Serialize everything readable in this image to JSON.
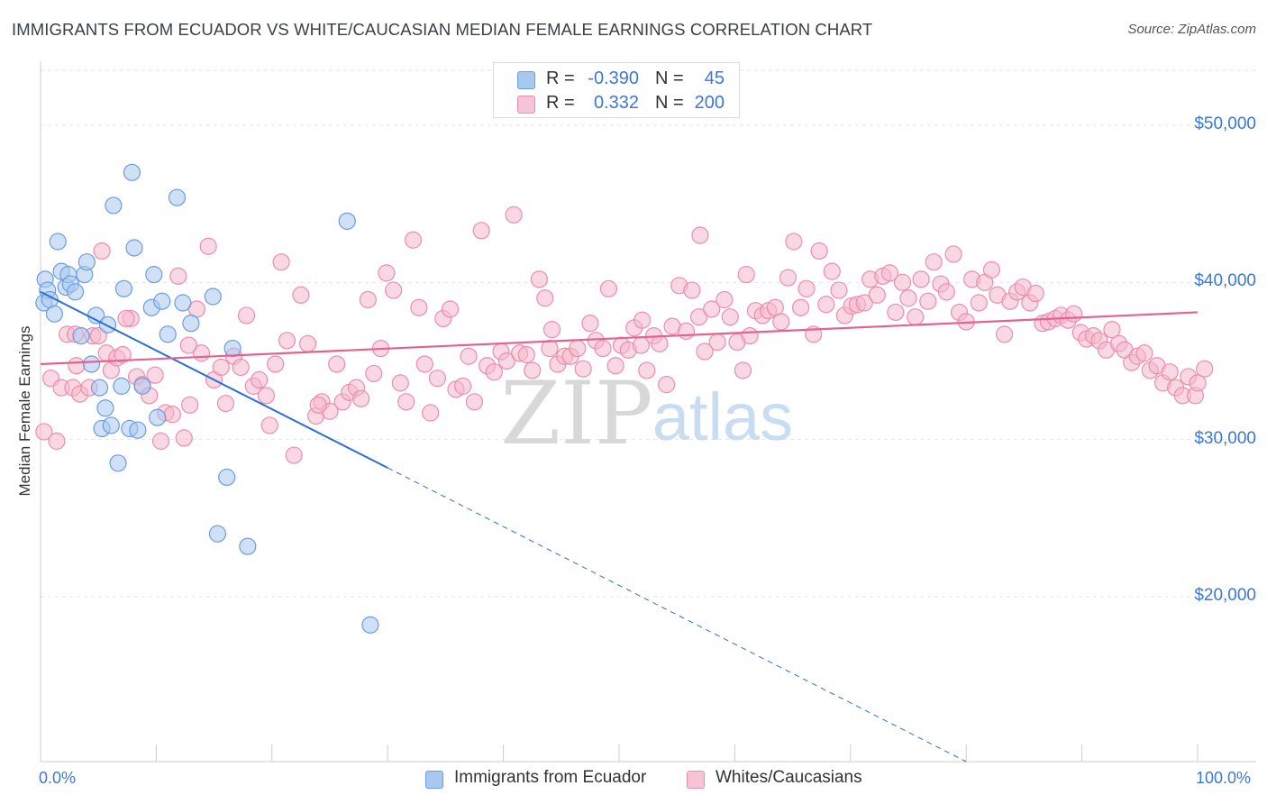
{
  "header": {
    "title": "IMMIGRANTS FROM ECUADOR VS WHITE/CAUCASIAN MEDIAN FEMALE EARNINGS CORRELATION CHART",
    "source": "Source: ZipAtlas.com"
  },
  "watermark": {
    "zip": "ZIP",
    "atlas": "atlas"
  },
  "legend": {
    "rows": [
      {
        "r_label": "R =",
        "r_value": "-0.390",
        "n_label": "N =",
        "n_value": "45"
      },
      {
        "r_label": "R =",
        "r_value": "0.332",
        "n_label": "N =",
        "n_value": "200"
      }
    ]
  },
  "colors": {
    "blue_fill": "#a9c8f0",
    "blue_stroke": "#6a9de0",
    "blue_line": "#2a6fd6",
    "pink_fill": "#f6b8cc",
    "pink_stroke": "#ec8eab",
    "pink_line": "#e3628f",
    "tick_text": "#3b78d8",
    "grid": "#e3e3e3"
  },
  "chart_data": {
    "type": "scatter",
    "title": "IMMIGRANTS FROM ECUADOR VS WHITE/CAUCASIAN MEDIAN FEMALE EARNINGS CORRELATION CHART",
    "xlabel": "",
    "ylabel": "Median Female Earnings",
    "xlim": [
      0,
      100
    ],
    "ylim": [
      9500,
      53500
    ],
    "y_ticks": [
      20000,
      30000,
      40000,
      50000
    ],
    "y_tick_labels": [
      "$20,000",
      "$30,000",
      "$40,000",
      "$50,000"
    ],
    "x_tick_labels": [
      "0.0%",
      "100.0%"
    ],
    "series": [
      {
        "name": "Immigrants from Ecuador",
        "color": "blue",
        "r": -0.39,
        "n": 45,
        "trend": {
          "x0": 0,
          "y0": 39400,
          "x1": 30,
          "y1": 28200,
          "dash_to_x": 80,
          "dash_to_y": 9500
        },
        "points": [
          [
            0.3,
            38700
          ],
          [
            0.4,
            40200
          ],
          [
            0.6,
            39500
          ],
          [
            0.8,
            38900
          ],
          [
            1.2,
            38000
          ],
          [
            1.5,
            42600
          ],
          [
            1.8,
            40700
          ],
          [
            2.2,
            39700
          ],
          [
            2.4,
            40500
          ],
          [
            2.6,
            39900
          ],
          [
            3.0,
            39400
          ],
          [
            3.5,
            36600
          ],
          [
            3.8,
            40500
          ],
          [
            4.0,
            41300
          ],
          [
            4.4,
            34800
          ],
          [
            4.8,
            37900
          ],
          [
            5.1,
            33300
          ],
          [
            5.3,
            30700
          ],
          [
            5.6,
            32000
          ],
          [
            5.8,
            37300
          ],
          [
            6.1,
            30900
          ],
          [
            6.7,
            28500
          ],
          [
            7.0,
            33400
          ],
          [
            7.2,
            39600
          ],
          [
            7.7,
            30700
          ],
          [
            7.9,
            47000
          ],
          [
            8.1,
            42200
          ],
          [
            8.4,
            30600
          ],
          [
            8.8,
            33400
          ],
          [
            9.6,
            38400
          ],
          [
            9.8,
            40500
          ],
          [
            10.1,
            31400
          ],
          [
            10.5,
            38800
          ],
          [
            11.0,
            36700
          ],
          [
            11.8,
            45400
          ],
          [
            12.3,
            38700
          ],
          [
            13.0,
            37400
          ],
          [
            14.9,
            39100
          ],
          [
            15.3,
            24000
          ],
          [
            16.1,
            27600
          ],
          [
            16.6,
            35800
          ],
          [
            17.9,
            23200
          ],
          [
            26.5,
            43900
          ],
          [
            28.5,
            18200
          ],
          [
            6.3,
            44900
          ]
        ]
      },
      {
        "name": "Whites/Caucasians",
        "color": "pink",
        "r": 0.332,
        "n": 200,
        "trend": {
          "x0": 0,
          "y0": 34800,
          "x1": 100,
          "y1": 38100
        },
        "points": [
          [
            0.3,
            30500
          ],
          [
            0.9,
            33900
          ],
          [
            1.4,
            29900
          ],
          [
            1.8,
            33300
          ],
          [
            2.3,
            36700
          ],
          [
            2.8,
            33300
          ],
          [
            3.1,
            34700
          ],
          [
            3.4,
            32900
          ],
          [
            4.2,
            33300
          ],
          [
            4.5,
            36600
          ],
          [
            5.0,
            36600
          ],
          [
            5.3,
            42000
          ],
          [
            5.7,
            35500
          ],
          [
            6.1,
            34400
          ],
          [
            6.6,
            35200
          ],
          [
            7.1,
            35400
          ],
          [
            7.8,
            37700
          ],
          [
            8.3,
            34000
          ],
          [
            8.8,
            33500
          ],
          [
            9.4,
            32800
          ],
          [
            9.9,
            34100
          ],
          [
            10.4,
            29900
          ],
          [
            10.8,
            31700
          ],
          [
            11.4,
            31600
          ],
          [
            11.9,
            40400
          ],
          [
            12.4,
            30100
          ],
          [
            12.9,
            32200
          ],
          [
            13.5,
            38300
          ],
          [
            13.9,
            35500
          ],
          [
            14.5,
            42300
          ],
          [
            15.0,
            33800
          ],
          [
            15.6,
            34600
          ],
          [
            16.0,
            32300
          ],
          [
            16.7,
            35300
          ],
          [
            17.3,
            34600
          ],
          [
            17.8,
            37900
          ],
          [
            18.4,
            33400
          ],
          [
            18.9,
            33800
          ],
          [
            19.5,
            32800
          ],
          [
            19.8,
            30900
          ],
          [
            20.3,
            34800
          ],
          [
            20.8,
            41300
          ],
          [
            21.3,
            36300
          ],
          [
            21.9,
            29000
          ],
          [
            22.5,
            39200
          ],
          [
            23.1,
            36100
          ],
          [
            23.8,
            31500
          ],
          [
            24.3,
            32400
          ],
          [
            25.0,
            31800
          ],
          [
            25.6,
            34800
          ],
          [
            26.1,
            32400
          ],
          [
            26.7,
            33000
          ],
          [
            27.3,
            33300
          ],
          [
            27.7,
            32600
          ],
          [
            28.3,
            38900
          ],
          [
            28.8,
            34200
          ],
          [
            29.4,
            35800
          ],
          [
            29.9,
            40600
          ],
          [
            30.5,
            39500
          ],
          [
            31.1,
            33600
          ],
          [
            31.6,
            32400
          ],
          [
            32.2,
            42700
          ],
          [
            32.7,
            38400
          ],
          [
            33.2,
            34800
          ],
          [
            33.7,
            31700
          ],
          [
            34.3,
            33900
          ],
          [
            34.8,
            37700
          ],
          [
            35.4,
            38300
          ],
          [
            35.9,
            33200
          ],
          [
            36.5,
            33400
          ],
          [
            37.0,
            35300
          ],
          [
            37.5,
            32400
          ],
          [
            38.1,
            43300
          ],
          [
            38.6,
            34700
          ],
          [
            39.2,
            34300
          ],
          [
            39.8,
            35600
          ],
          [
            40.3,
            35000
          ],
          [
            40.9,
            44300
          ],
          [
            41.4,
            35500
          ],
          [
            42.0,
            35400
          ],
          [
            42.5,
            34400
          ],
          [
            43.1,
            40200
          ],
          [
            43.6,
            39000
          ],
          [
            44.2,
            37000
          ],
          [
            44.7,
            34800
          ],
          [
            45.3,
            35300
          ],
          [
            45.8,
            35300
          ],
          [
            46.4,
            35800
          ],
          [
            46.9,
            34500
          ],
          [
            47.5,
            37400
          ],
          [
            48.0,
            36300
          ],
          [
            48.6,
            35800
          ],
          [
            49.1,
            39600
          ],
          [
            49.7,
            34700
          ],
          [
            50.2,
            36000
          ],
          [
            50.8,
            35700
          ],
          [
            51.3,
            37100
          ],
          [
            51.9,
            36000
          ],
          [
            52.4,
            34400
          ],
          [
            53.0,
            36600
          ],
          [
            53.5,
            36100
          ],
          [
            54.1,
            33500
          ],
          [
            54.6,
            37200
          ],
          [
            55.2,
            39800
          ],
          [
            55.8,
            36900
          ],
          [
            56.3,
            39500
          ],
          [
            56.9,
            37800
          ],
          [
            57.4,
            35600
          ],
          [
            58.0,
            38300
          ],
          [
            58.5,
            36200
          ],
          [
            59.1,
            38900
          ],
          [
            59.6,
            37800
          ],
          [
            60.2,
            36200
          ],
          [
            60.7,
            34400
          ],
          [
            61.3,
            36600
          ],
          [
            61.8,
            38200
          ],
          [
            62.4,
            37900
          ],
          [
            62.9,
            38200
          ],
          [
            63.5,
            38400
          ],
          [
            64.0,
            37500
          ],
          [
            64.6,
            40300
          ],
          [
            65.1,
            42600
          ],
          [
            65.7,
            38400
          ],
          [
            66.2,
            39600
          ],
          [
            66.8,
            36700
          ],
          [
            67.3,
            42000
          ],
          [
            67.9,
            38600
          ],
          [
            68.4,
            40700
          ],
          [
            69.0,
            39500
          ],
          [
            69.5,
            37900
          ],
          [
            70.1,
            38500
          ],
          [
            70.6,
            38600
          ],
          [
            71.2,
            38700
          ],
          [
            71.7,
            40200
          ],
          [
            72.3,
            39200
          ],
          [
            72.8,
            40400
          ],
          [
            73.4,
            40600
          ],
          [
            73.9,
            38100
          ],
          [
            74.5,
            40000
          ],
          [
            75.0,
            39000
          ],
          [
            75.6,
            37800
          ],
          [
            76.1,
            40200
          ],
          [
            76.7,
            38800
          ],
          [
            77.2,
            41300
          ],
          [
            77.8,
            39900
          ],
          [
            78.3,
            39400
          ],
          [
            78.9,
            41800
          ],
          [
            79.4,
            38100
          ],
          [
            80.0,
            37500
          ],
          [
            80.5,
            40200
          ],
          [
            81.1,
            38700
          ],
          [
            81.6,
            40000
          ],
          [
            82.2,
            40800
          ],
          [
            82.7,
            39200
          ],
          [
            83.3,
            36700
          ],
          [
            83.8,
            38800
          ],
          [
            84.4,
            39400
          ],
          [
            84.9,
            39700
          ],
          [
            85.5,
            38700
          ],
          [
            86.0,
            39300
          ],
          [
            86.6,
            37400
          ],
          [
            87.1,
            37500
          ],
          [
            87.7,
            37700
          ],
          [
            88.2,
            37900
          ],
          [
            88.8,
            37600
          ],
          [
            89.3,
            38000
          ],
          [
            89.9,
            36800
          ],
          [
            90.4,
            36400
          ],
          [
            91.0,
            36600
          ],
          [
            91.5,
            36300
          ],
          [
            92.1,
            35700
          ],
          [
            92.6,
            37000
          ],
          [
            93.2,
            36100
          ],
          [
            93.7,
            35700
          ],
          [
            94.3,
            34900
          ],
          [
            94.8,
            35300
          ],
          [
            95.4,
            35500
          ],
          [
            95.9,
            34400
          ],
          [
            96.5,
            34700
          ],
          [
            97.0,
            33600
          ],
          [
            97.6,
            34300
          ],
          [
            98.1,
            33300
          ],
          [
            98.7,
            32800
          ],
          [
            99.2,
            34000
          ],
          [
            99.8,
            32800
          ],
          [
            100.0,
            33600
          ],
          [
            100.6,
            34500
          ],
          [
            3.0,
            36700
          ],
          [
            7.4,
            37700
          ],
          [
            12.8,
            36000
          ],
          [
            24.0,
            32200
          ],
          [
            44.0,
            35800
          ],
          [
            52.0,
            37600
          ],
          [
            57.0,
            43000
          ],
          [
            61.0,
            40500
          ]
        ]
      }
    ]
  },
  "bottom_legend": {
    "items": [
      {
        "label": "Immigrants from Ecuador"
      },
      {
        "label": "Whites/Caucasians"
      }
    ]
  }
}
